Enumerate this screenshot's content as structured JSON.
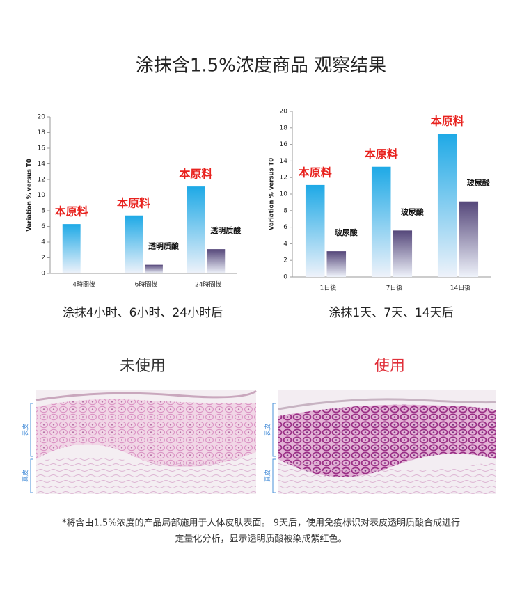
{
  "header": {
    "title": "涂抹含1.5%浓度商品 观察结果"
  },
  "chart_data": [
    {
      "type": "bar",
      "y_label": "Variation % versus T0",
      "categories": [
        "4時間後",
        "6時間後",
        "24時間後"
      ],
      "series": [
        {
          "name": "本原料",
          "color": "#1ea9e6",
          "label_color": "#e8231f",
          "values": [
            6.3,
            7.4,
            11.1
          ]
        },
        {
          "name": "透明质酸",
          "color": "#55477a",
          "label_color": "#111111",
          "values": [
            null,
            1.1,
            3.1
          ]
        }
      ],
      "ylim": [
        0,
        20
      ],
      "yticks": [
        0,
        2,
        4,
        6,
        8,
        10,
        12,
        14,
        16,
        18,
        20
      ]
    },
    {
      "type": "bar",
      "y_label": "Variation % versus T0",
      "categories": [
        "1日後",
        "7日後",
        "14日後"
      ],
      "series": [
        {
          "name": "本原料",
          "color": "#1ea9e6",
          "label_color": "#e8231f",
          "values": [
            11.1,
            13.3,
            17.3
          ]
        },
        {
          "name": "玻尿酸",
          "color": "#55477a",
          "label_color": "#111111",
          "values": [
            3.1,
            5.6,
            9.1
          ]
        }
      ],
      "ylim": [
        0,
        20
      ],
      "yticks": [
        0,
        2,
        4,
        6,
        8,
        10,
        12,
        14,
        16,
        18,
        20
      ]
    }
  ],
  "captions": [
    "涂抹4小时、6小时、24小时后",
    "涂抹1天、7天、14天后"
  ],
  "images": [
    {
      "label": "未使用",
      "color": "#333333",
      "layers": [
        "表皮",
        "真皮"
      ]
    },
    {
      "label": "使用",
      "color": "#e0303a",
      "layers": [
        "表皮",
        "真皮"
      ]
    }
  ],
  "footnote": [
    "*将含由1.5%浓度的产品局部施用于人体皮肤表面。 9天后，使用免疫标识对表皮透明质酸合成进行",
    "定量化分析，显示透明质酸被染成紫红色。"
  ]
}
